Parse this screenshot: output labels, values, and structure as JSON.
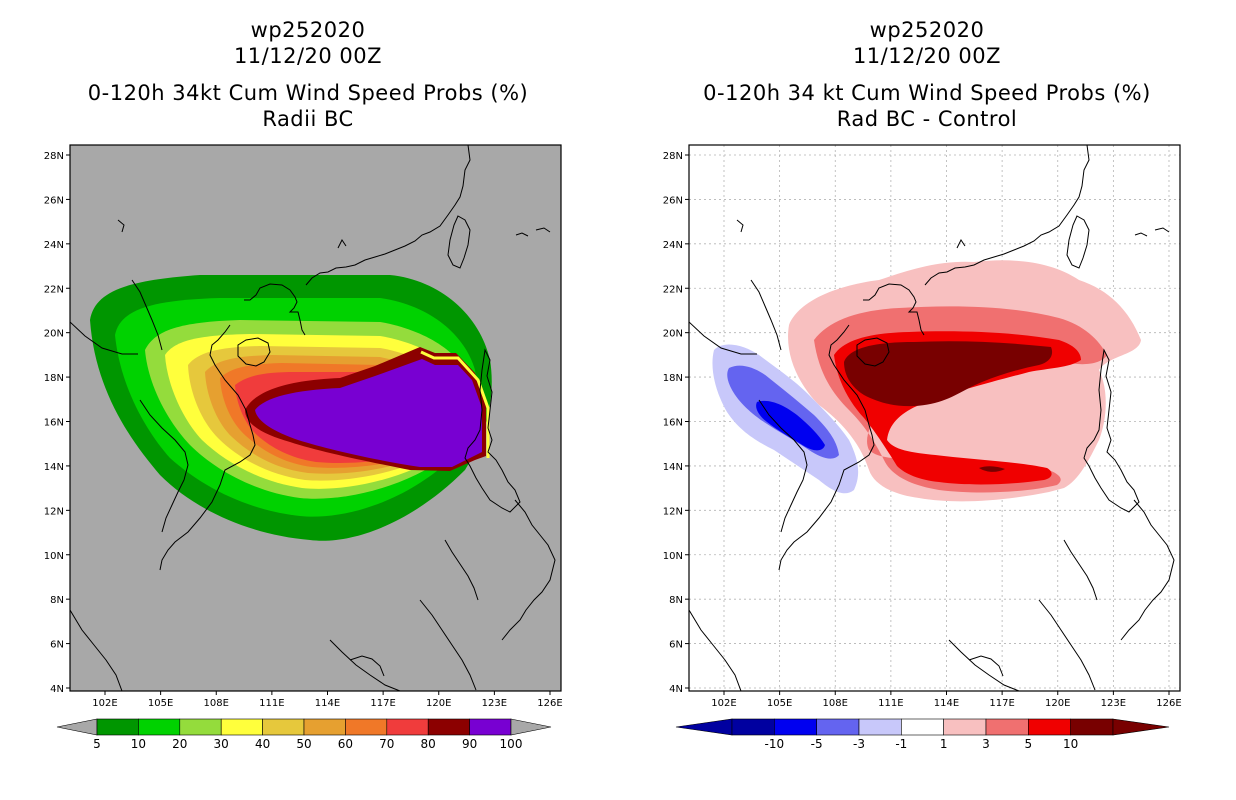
{
  "left": {
    "title_lines": [
      "wp252020",
      "11/12/20 00Z",
      "0-120h 34kt Cum Wind Speed Probs (%)",
      "Radii BC"
    ],
    "lat_labels": [
      "28N",
      "26N",
      "24N",
      "22N",
      "20N",
      "18N",
      "16N",
      "14N",
      "12N",
      "10N",
      "8N",
      "6N",
      "4N"
    ],
    "lon_labels": [
      "102E",
      "105E",
      "108E",
      "111E",
      "114E",
      "117E",
      "120E",
      "123E",
      "126E"
    ],
    "colorbar": {
      "colors": [
        "#009600",
        "#00d200",
        "#94dc3c",
        "#ffff3c",
        "#e6c83c",
        "#e6a030",
        "#f07828",
        "#f03c3c",
        "#8c0000",
        "#7800d2"
      ],
      "labels": [
        "5",
        "10",
        "20",
        "30",
        "40",
        "50",
        "60",
        "70",
        "80",
        "90",
        "100"
      ],
      "end_color": "#a8a8a8"
    }
  },
  "right": {
    "title_lines": [
      "wp252020",
      "11/12/20 00Z",
      "0-120h 34 kt Cum Wind Speed Probs (%)",
      "Rad BC - Control"
    ],
    "lat_labels": [
      "28N",
      "26N",
      "24N",
      "22N",
      "20N",
      "18N",
      "16N",
      "14N",
      "12N",
      "10N",
      "8N",
      "6N",
      "4N"
    ],
    "lon_labels": [
      "102E",
      "105E",
      "108E",
      "111E",
      "114E",
      "117E",
      "120E",
      "123E",
      "126E"
    ],
    "colorbar": {
      "colors": [
        "#0000a0",
        "#0000f0",
        "#6464f0",
        "#c8c8fa",
        "#ffffff",
        "#f8c0c0",
        "#f07070",
        "#f00000",
        "#780000"
      ],
      "labels": [
        "-10",
        "-5",
        "-3",
        "-1",
        "1",
        "3",
        "5",
        "10"
      ]
    }
  }
}
